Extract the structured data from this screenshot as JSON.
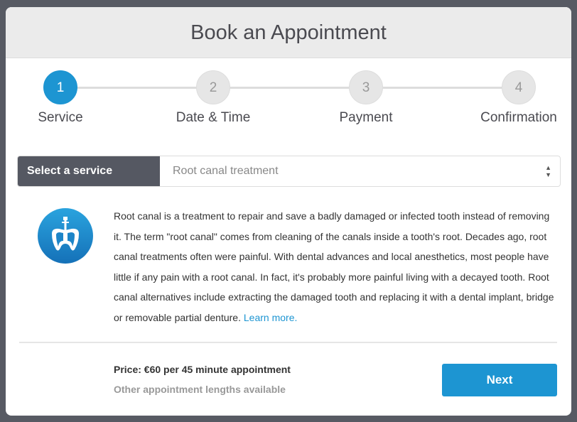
{
  "header": {
    "title": "Book an Appointment"
  },
  "steps": [
    {
      "number": "1",
      "label": "Service",
      "active": true
    },
    {
      "number": "2",
      "label": "Date & Time",
      "active": false
    },
    {
      "number": "3",
      "label": "Payment",
      "active": false
    },
    {
      "number": "4",
      "label": "Confirmation",
      "active": false
    }
  ],
  "service_select": {
    "label": "Select a service",
    "value": "Root canal treatment"
  },
  "description": {
    "icon": "root-canal-tooth-icon",
    "text": "Root canal is a treatment to repair and save a badly damaged or infected tooth instead of removing it. The term \"root canal\" comes from cleaning of the canals inside a tooth's root. Decades ago, root canal treatments often were painful. With dental advances and local anesthetics, most people have little if any pain with a root canal. In fact, it's probably more painful living with a decayed tooth. Root canal alternatives include extracting the damaged tooth and replacing it with a dental implant, bridge or removable partial denture.",
    "link": "Learn more."
  },
  "footer": {
    "price": "Price: €60 per 45 minute appointment",
    "other": "Other appointment lengths available",
    "next_label": "Next"
  },
  "colors": {
    "accent": "#1d95d2",
    "dark": "#555862"
  }
}
